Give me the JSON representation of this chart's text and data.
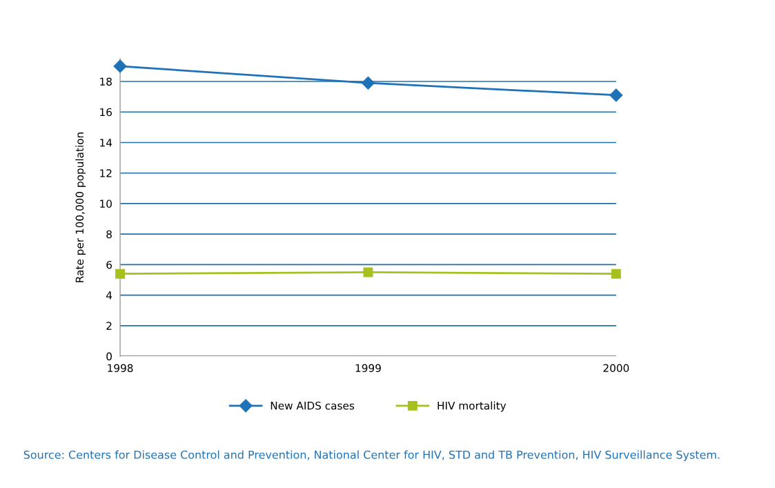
{
  "chart_data": {
    "type": "line",
    "ylabel": "Rate per 100,000 population",
    "categories": [
      "1998",
      "1999",
      "2000"
    ],
    "series": [
      {
        "name": "New AIDS cases",
        "color": "#1f72b8",
        "values": [
          19.0,
          17.9,
          17.1
        ],
        "marker": "diamond"
      },
      {
        "name": "HIV mortality",
        "color": "#a8c01e",
        "values": [
          5.4,
          5.5,
          5.4
        ],
        "marker": "square"
      }
    ],
    "ylim": [
      0,
      19.5
    ],
    "yticks": [
      0,
      2,
      4,
      6,
      8,
      10,
      12,
      14,
      16,
      18
    ],
    "grid": "y",
    "legend": "bottom",
    "annotations": [
      "Source: Centers for Disease Control and Prevention, National Center for HIV, STD and TB Prevention, HIV Surveillance System."
    ]
  }
}
